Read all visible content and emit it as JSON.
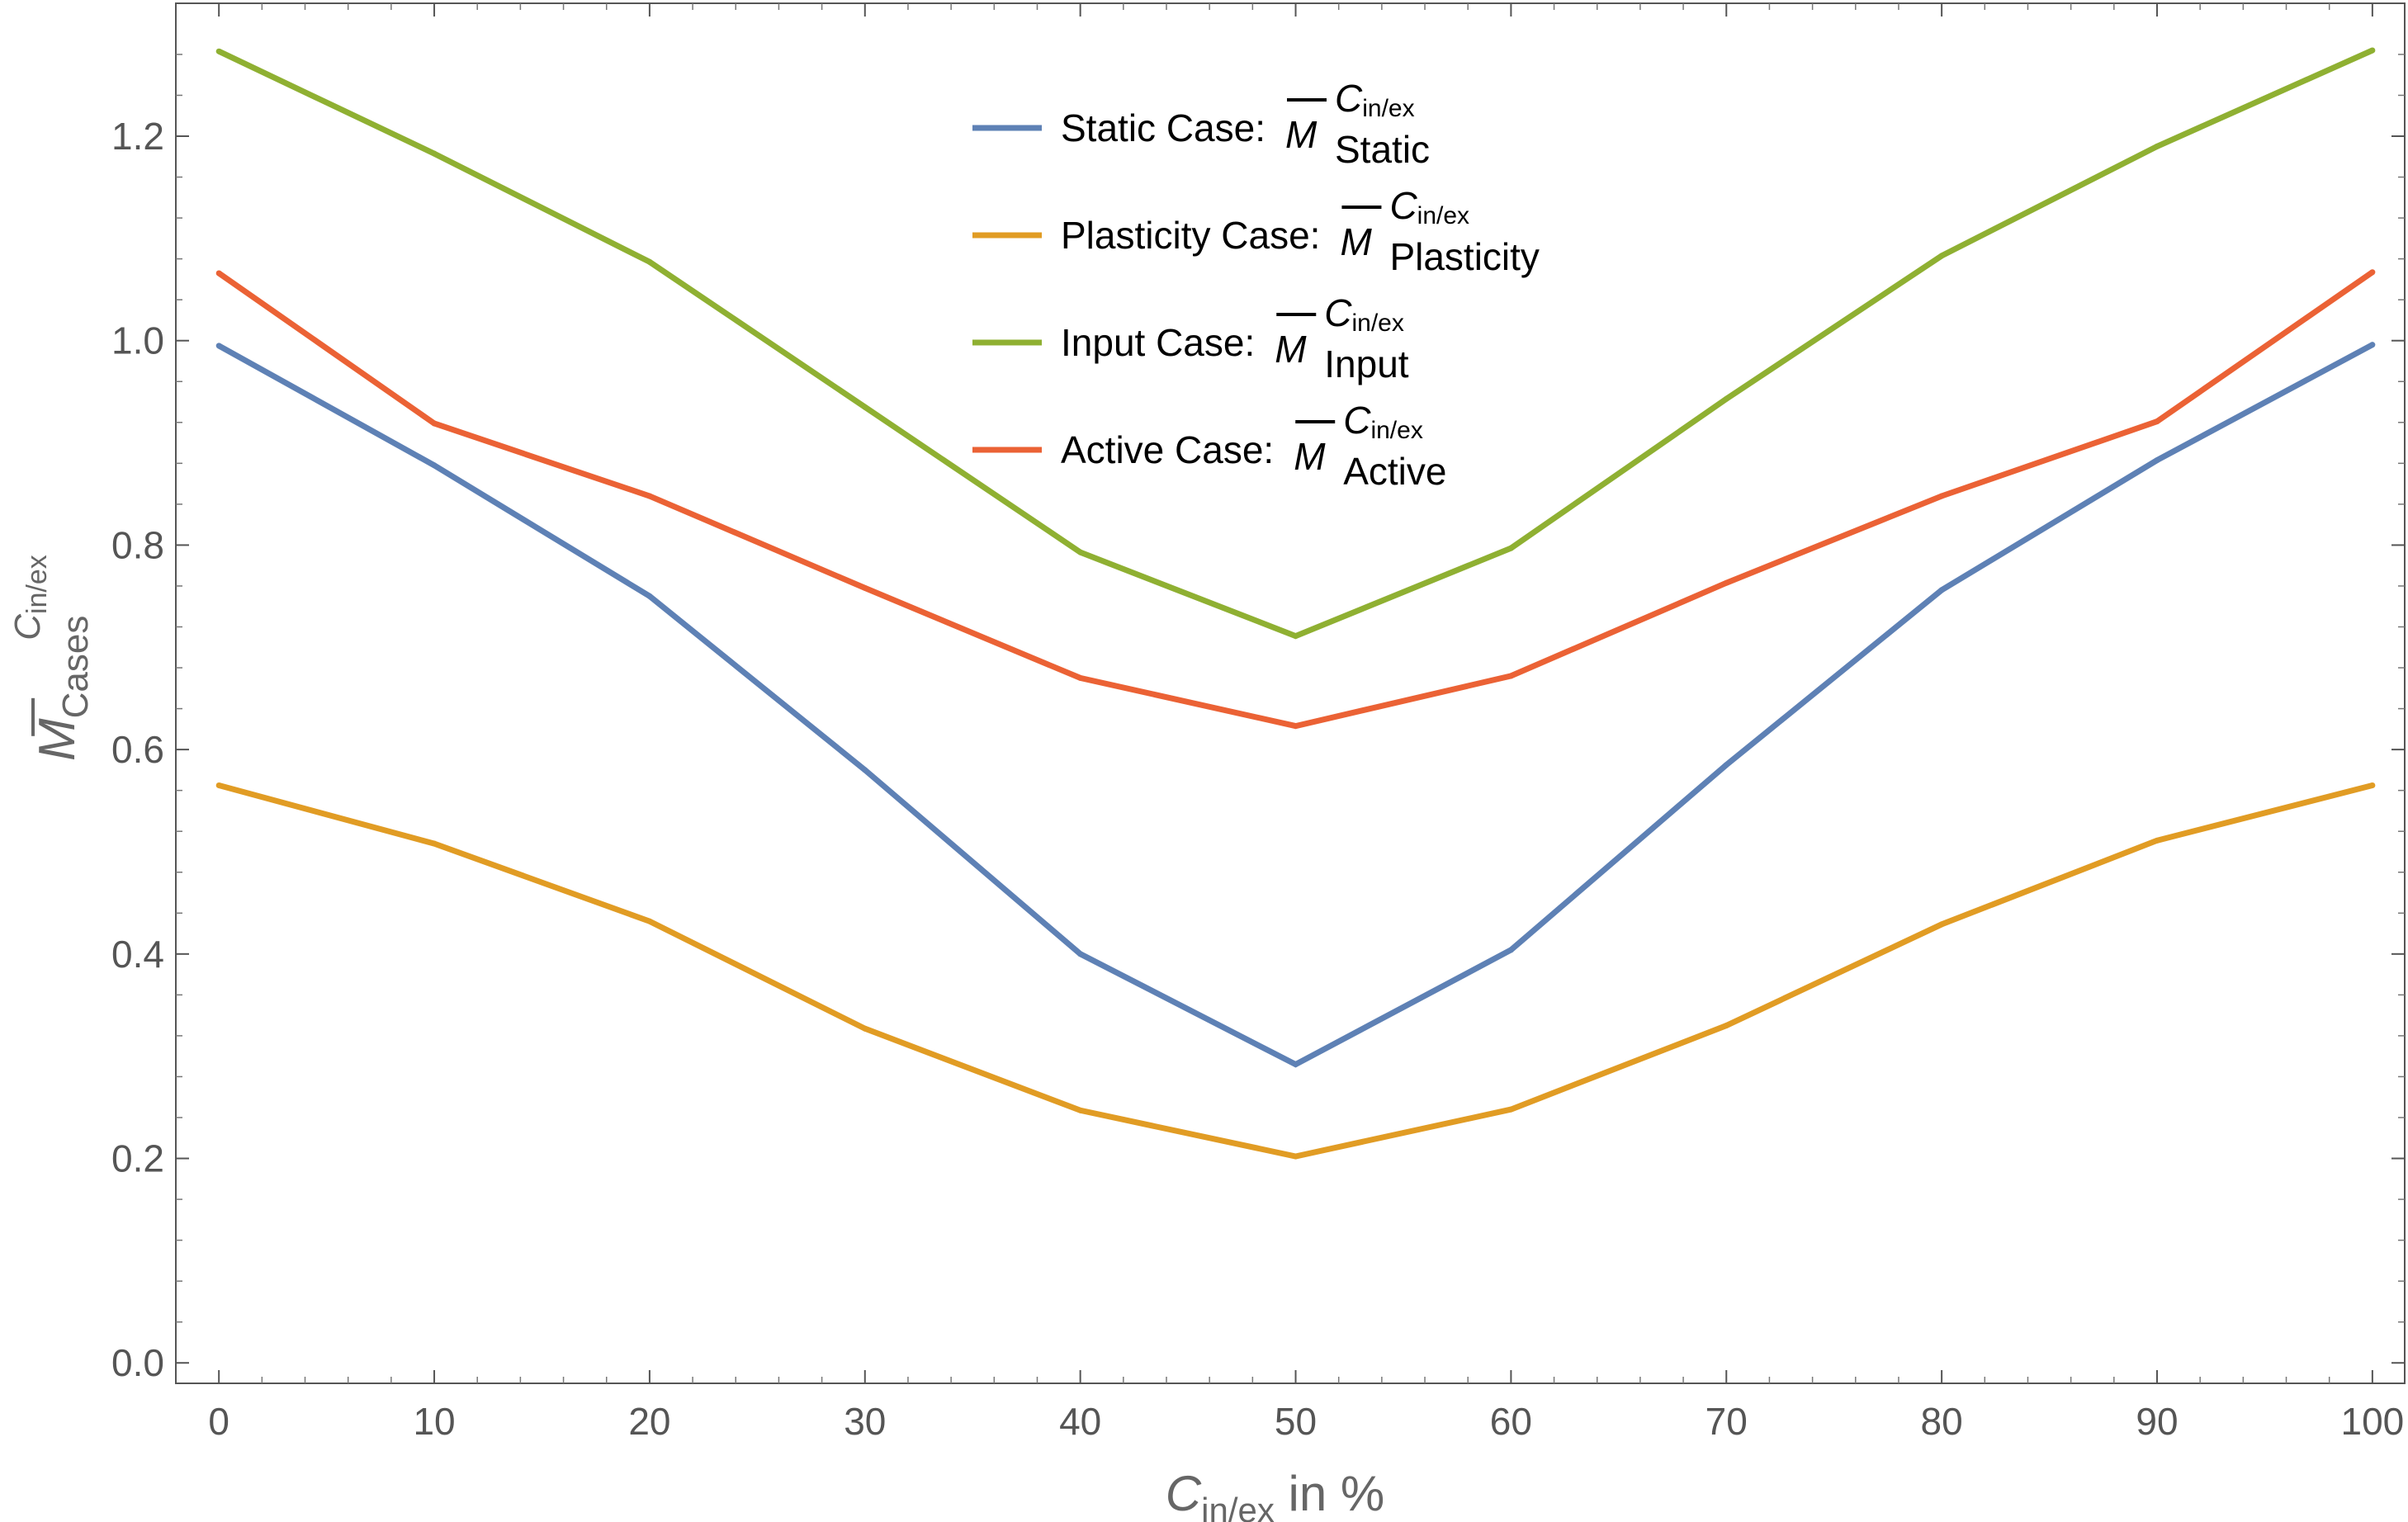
{
  "chart_data": {
    "type": "line",
    "title": "",
    "x": [
      0,
      10,
      20,
      30,
      40,
      50,
      60,
      70,
      80,
      90,
      100
    ],
    "xlim": [
      -2,
      101.5
    ],
    "ylim": [
      -0.02,
      1.33
    ],
    "x_ticks": [
      0,
      10,
      20,
      30,
      40,
      50,
      60,
      70,
      80,
      90,
      100
    ],
    "x_tick_labels": [
      "0",
      "10",
      "20",
      "30",
      "40",
      "50",
      "60",
      "70",
      "80",
      "90",
      "100"
    ],
    "y_ticks": [
      0.0,
      0.2,
      0.4,
      0.6,
      0.8,
      1.0,
      1.2
    ],
    "y_tick_labels": [
      "0.0",
      "0.2",
      "0.4",
      "0.6",
      "0.8",
      "1.0",
      "1.2"
    ],
    "xlabel": {
      "main": "C",
      "sub": "in/ex",
      "suffix": " in %"
    },
    "ylabel": {
      "base": "M",
      "sup_main": "C",
      "sup_sub": "in/ex",
      "sub": "Cases"
    },
    "grid": false,
    "legend_position": "top-center",
    "series": [
      {
        "name": "Static Case",
        "label": "Static Case:",
        "math": {
          "base": "M",
          "sup_main": "C",
          "sup_sub": "in/ex",
          "sub": "Static"
        },
        "color": "#5e81b5",
        "values": [
          0.995,
          0.878,
          0.75,
          0.58,
          0.4,
          0.292,
          0.404,
          0.585,
          0.756,
          0.883,
          0.996
        ]
      },
      {
        "name": "Plasticity Case",
        "label": "Plasticity Case:",
        "math": {
          "base": "M",
          "sup_main": "C",
          "sup_sub": "in/ex",
          "sub": "Plasticity"
        },
        "color": "#e19c24",
        "values": [
          0.565,
          0.508,
          0.432,
          0.327,
          0.247,
          0.202,
          0.248,
          0.33,
          0.429,
          0.511,
          0.565
        ]
      },
      {
        "name": "Input Case",
        "label": "Input Case:",
        "math": {
          "base": "M",
          "sup_main": "C",
          "sup_sub": "in/ex",
          "sub": "Input"
        },
        "color": "#8fb032",
        "values": [
          1.283,
          1.183,
          1.077,
          0.935,
          0.793,
          0.711,
          0.797,
          0.943,
          1.083,
          1.19,
          1.284
        ]
      },
      {
        "name": "Active Case",
        "label": "Active Case:",
        "math": {
          "base": "M",
          "sup_main": "C",
          "sup_sub": "in/ex",
          "sub": "Active"
        },
        "color": "#eb6235",
        "values": [
          1.066,
          0.919,
          0.848,
          0.758,
          0.67,
          0.623,
          0.672,
          0.763,
          0.848,
          0.921,
          1.067
        ]
      }
    ]
  }
}
